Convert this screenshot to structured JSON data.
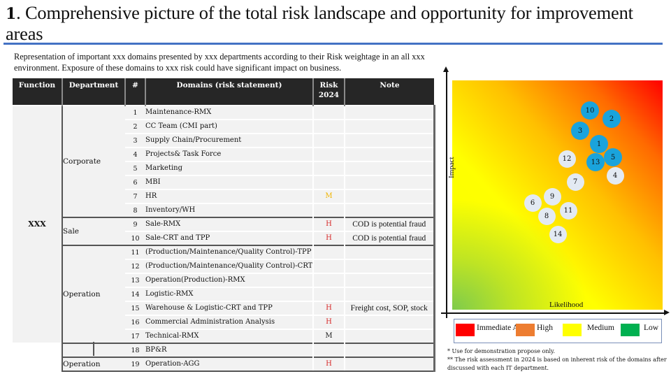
{
  "header": {
    "title_number": "1",
    "title_text": ". Comprehensive picture of the total risk landscape and opportunity for improvement areas",
    "description": "Representation of important xxx domains presented by xxx departments according to their Risk weightage in an all xxx environment. Exposure of these domains to xxx risk could have significant impact on business."
  },
  "table": {
    "columns": [
      "Function",
      "Department",
      "#",
      "Domains (risk statement)",
      "Risk 2024",
      "Note"
    ],
    "function_label": "XXX",
    "departments": {
      "corporate": "Corporate",
      "sale": "Sale",
      "operation": "Operation",
      "bpr": "",
      "operation_agg": "Operation"
    },
    "rows": [
      {
        "num": "1",
        "domain": "Maintenance-RMX",
        "risk": "",
        "note": ""
      },
      {
        "num": "2",
        "domain": "CC Team (CMI part)",
        "risk": "",
        "note": ""
      },
      {
        "num": "3",
        "domain": "Supply Chain/Procurement",
        "risk": "",
        "note": ""
      },
      {
        "num": "4",
        "domain": "Projects& Task Force",
        "risk": "",
        "note": ""
      },
      {
        "num": "5",
        "domain": "Marketing",
        "risk": "",
        "note": ""
      },
      {
        "num": "6",
        "domain": "MBI",
        "risk": "",
        "note": ""
      },
      {
        "num": "7",
        "domain": "HR",
        "risk": "M",
        "note": ""
      },
      {
        "num": "8",
        "domain": "Inventory/WH",
        "risk": "",
        "note": ""
      },
      {
        "num": "9",
        "domain": "Sale-RMX",
        "risk": "H",
        "note": "COD is potential fraud"
      },
      {
        "num": "10",
        "domain": "Sale-CRT and TPP",
        "risk": "H",
        "note": "COD is potential fraud"
      },
      {
        "num": "11",
        "domain": "(Production/Maintenance/Quality Control)-TPP",
        "risk": "",
        "note": ""
      },
      {
        "num": "12",
        "domain": "(Production/Maintenance/Quality Control)-CRT",
        "risk": "",
        "note": ""
      },
      {
        "num": "13",
        "domain": "Operation(Production)-RMX",
        "risk": "",
        "note": ""
      },
      {
        "num": "14",
        "domain": "Logistic-RMX",
        "risk": "",
        "note": ""
      },
      {
        "num": "15",
        "domain": "Warehouse & Logistic-CRT and TPP",
        "risk": "H",
        "note": "Freight cost, SOP, stock"
      },
      {
        "num": "16",
        "domain": "Commercial Administration Analysis",
        "risk": "H",
        "note": ""
      },
      {
        "num": "17",
        "domain": "Technical-RMX",
        "risk": "M",
        "note": ""
      },
      {
        "num": "18",
        "domain": "BP&R",
        "risk": "",
        "note": ""
      },
      {
        "num": "19",
        "domain": "Operation-AGG",
        "risk": "H",
        "note": ""
      }
    ]
  },
  "heatmap": {
    "y_label": "Impact",
    "x_label": "Likelihood",
    "bubbles": [
      {
        "label": "10",
        "style": "blue"
      },
      {
        "label": "2",
        "style": "blue"
      },
      {
        "label": "3",
        "style": "blue"
      },
      {
        "label": "1",
        "style": "blue"
      },
      {
        "label": "5",
        "style": "blue"
      },
      {
        "label": "13",
        "style": "blue"
      },
      {
        "label": "12",
        "style": "grey"
      },
      {
        "label": "4",
        "style": "grey"
      },
      {
        "label": "7",
        "style": "grey"
      },
      {
        "label": "9",
        "style": "grey"
      },
      {
        "label": "6",
        "style": "grey"
      },
      {
        "label": "11",
        "style": "grey"
      },
      {
        "label": "8",
        "style": "grey"
      },
      {
        "label": "14",
        "style": "grey"
      }
    ],
    "colors": {
      "blue": "#1aa3dc",
      "grey": "#e3eaf3"
    }
  },
  "legend": {
    "items": [
      {
        "label": "Immediate Action",
        "color": "#ff0000"
      },
      {
        "label": "High",
        "color": "#ed7d31"
      },
      {
        "label": "Medium",
        "color": "#ffff00"
      },
      {
        "label": "Low",
        "color": "#00b050"
      }
    ]
  },
  "footnotes": [
    "* Use for demonstration propose only.",
    "** The risk assessment in 2024 is based on inherent risk of the domains after discussed with each IT department."
  ]
}
